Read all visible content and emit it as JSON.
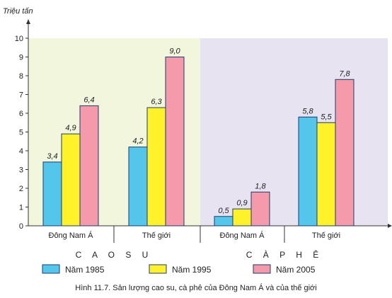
{
  "chart_data": {
    "type": "bar",
    "ylabel": "Triệu tấn",
    "ylim": [
      0,
      10
    ],
    "yticks": [
      0,
      1,
      2,
      3,
      4,
      5,
      6,
      7,
      8,
      9,
      10
    ],
    "groups": [
      {
        "name": "C A O  S U",
        "categories": [
          "Đông Nam Á",
          "Thế giới"
        ],
        "background": "#f1f6dc",
        "series_values": [
          [
            3.4,
            4.2
          ],
          [
            4.9,
            6.3
          ],
          [
            6.4,
            9.0
          ]
        ],
        "labels": [
          [
            "3,4",
            "4,2"
          ],
          [
            "4,9",
            "6,3"
          ],
          [
            "6,4",
            "9,0"
          ]
        ]
      },
      {
        "name": "C À  P H Ê",
        "categories": [
          "Đông Nam Á",
          "Thế giới"
        ],
        "background": "#e8e3f1",
        "series_values": [
          [
            0.5,
            5.8
          ],
          [
            0.9,
            5.5
          ],
          [
            1.8,
            7.8
          ]
        ],
        "labels": [
          [
            "0,5",
            "5,8"
          ],
          [
            "0,9",
            "5,5"
          ],
          [
            "1,8",
            "7,8"
          ]
        ]
      }
    ],
    "series": [
      {
        "name": "Năm 1985",
        "color": "#54c6eb"
      },
      {
        "name": "Năm 1995",
        "color": "#fff22a"
      },
      {
        "name": "Năm 2005",
        "color": "#f59aaa"
      }
    ],
    "caption": "Hình 11.7. Sản lượng cao su, cà phê của Đông Nam Á và của thế giới"
  }
}
